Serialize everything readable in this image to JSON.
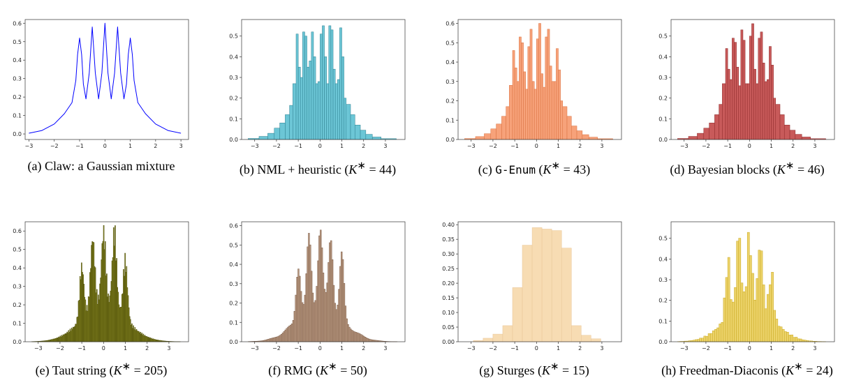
{
  "chart_data": [
    {
      "id": "a",
      "type": "line",
      "title": "",
      "color": "#0000ff",
      "caption": {
        "prefix": "(a) Claw: a Gaussian mixture",
        "kstar": ""
      },
      "xlim": [
        -3.15,
        3.3
      ],
      "ylim": [
        -0.03,
        0.62
      ],
      "xticks": [
        -3,
        -2,
        -1,
        0,
        1,
        2,
        3
      ],
      "xtick_labels": [
        "−3",
        "−2",
        "−1",
        "0",
        "1",
        "2",
        "3"
      ],
      "yticks": [
        0.0,
        0.1,
        0.2,
        0.3,
        0.4,
        0.5,
        0.6
      ],
      "ytick_labels": [
        "0.0",
        "0.1",
        "0.2",
        "0.3",
        "0.4",
        "0.5",
        "0.6"
      ],
      "x": [
        -3.0,
        -2.5,
        -2.0,
        -1.6,
        -1.3,
        -1.15,
        -1.08,
        -1.0,
        -0.92,
        -0.85,
        -0.75,
        -0.62,
        -0.5,
        -0.38,
        -0.25,
        -0.12,
        0.0,
        0.12,
        0.25,
        0.38,
        0.5,
        0.62,
        0.75,
        0.85,
        0.92,
        1.0,
        1.08,
        1.15,
        1.3,
        1.6,
        2.0,
        2.5,
        3.0
      ],
      "y": [
        0.004,
        0.018,
        0.054,
        0.11,
        0.17,
        0.29,
        0.43,
        0.52,
        0.43,
        0.27,
        0.19,
        0.33,
        0.58,
        0.33,
        0.19,
        0.33,
        0.6,
        0.33,
        0.19,
        0.33,
        0.58,
        0.33,
        0.19,
        0.27,
        0.43,
        0.52,
        0.43,
        0.29,
        0.17,
        0.11,
        0.054,
        0.018,
        0.004
      ]
    },
    {
      "id": "b",
      "type": "bar",
      "title": "",
      "color": "#6cc6d6",
      "edge": "#2c7f8f",
      "caption": {
        "prefix": "(b) NML + heuristic (",
        "kstar": "44"
      },
      "xlim": [
        -3.6,
        3.9
      ],
      "ylim": [
        0,
        0.58
      ],
      "xticks": [
        -3,
        -2,
        -1,
        0,
        1,
        2,
        3
      ],
      "xtick_labels": [
        "−3",
        "−2",
        "−1",
        "0",
        "1",
        "2",
        "3"
      ],
      "yticks": [
        0.0,
        0.1,
        0.2,
        0.3,
        0.4,
        0.5
      ],
      "ytick_labels": [
        "0.0",
        "0.1",
        "0.2",
        "0.3",
        "0.4",
        "0.5"
      ],
      "edges": [
        -3.3,
        -2.8,
        -2.4,
        -2.1,
        -1.85,
        -1.6,
        -1.4,
        -1.25,
        -1.1,
        -1.0,
        -0.9,
        -0.8,
        -0.7,
        -0.6,
        -0.5,
        -0.4,
        -0.3,
        -0.2,
        -0.1,
        0.0,
        0.1,
        0.2,
        0.3,
        0.4,
        0.5,
        0.6,
        0.7,
        0.8,
        0.9,
        1.0,
        1.1,
        1.2,
        1.4,
        1.6,
        1.85,
        2.1,
        2.4,
        2.8,
        3.5
      ],
      "values": [
        0.005,
        0.015,
        0.03,
        0.055,
        0.08,
        0.12,
        0.165,
        0.27,
        0.51,
        0.35,
        0.3,
        0.52,
        0.5,
        0.35,
        0.38,
        0.52,
        0.4,
        0.27,
        0.28,
        0.51,
        0.55,
        0.4,
        0.27,
        0.55,
        0.53,
        0.34,
        0.27,
        0.29,
        0.54,
        0.4,
        0.2,
        0.17,
        0.12,
        0.07,
        0.045,
        0.025,
        0.012,
        0.004
      ]
    },
    {
      "id": "c",
      "type": "bar",
      "title": "",
      "color": "#f7a27a",
      "edge": "#d9713f",
      "caption": {
        "prefix": "(c) ",
        "mono": "G-Enum",
        "mid": " (",
        "kstar": "43"
      },
      "xlim": [
        -3.6,
        3.9
      ],
      "ylim": [
        0,
        0.62
      ],
      "xticks": [
        -3,
        -2,
        -1,
        0,
        1,
        2,
        3
      ],
      "xtick_labels": [
        "−3",
        "−2",
        "−1",
        "0",
        "1",
        "2",
        "3"
      ],
      "yticks": [
        0.0,
        0.1,
        0.2,
        0.3,
        0.4,
        0.5,
        0.6
      ],
      "ytick_labels": [
        "0.0",
        "0.1",
        "0.2",
        "0.3",
        "0.4",
        "0.5",
        "0.6"
      ],
      "edges": [
        -3.3,
        -2.8,
        -2.4,
        -2.1,
        -1.85,
        -1.6,
        -1.4,
        -1.25,
        -1.1,
        -1.0,
        -0.9,
        -0.8,
        -0.7,
        -0.6,
        -0.5,
        -0.4,
        -0.3,
        -0.2,
        -0.1,
        0.0,
        0.1,
        0.2,
        0.3,
        0.4,
        0.5,
        0.6,
        0.7,
        0.8,
        0.9,
        1.0,
        1.1,
        1.2,
        1.4,
        1.6,
        1.85,
        2.1,
        2.4,
        2.8,
        3.5
      ],
      "values": [
        0.005,
        0.015,
        0.03,
        0.055,
        0.08,
        0.12,
        0.17,
        0.28,
        0.46,
        0.37,
        0.3,
        0.53,
        0.5,
        0.35,
        0.26,
        0.48,
        0.57,
        0.3,
        0.26,
        0.52,
        0.6,
        0.34,
        0.27,
        0.53,
        0.57,
        0.38,
        0.3,
        0.3,
        0.47,
        0.36,
        0.2,
        0.17,
        0.12,
        0.07,
        0.045,
        0.025,
        0.012,
        0.004
      ]
    },
    {
      "id": "d",
      "type": "bar",
      "title": "",
      "color": "#c85a5a",
      "edge": "#8e2a2a",
      "caption": {
        "prefix": "(d) Bayesian blocks (",
        "kstar": "46"
      },
      "xlim": [
        -3.6,
        3.9
      ],
      "ylim": [
        0,
        0.58
      ],
      "xticks": [
        -3,
        -2,
        -1,
        0,
        1,
        2,
        3
      ],
      "xtick_labels": [
        "−3",
        "−2",
        "−1",
        "0",
        "1",
        "2",
        "3"
      ],
      "yticks": [
        0.0,
        0.1,
        0.2,
        0.3,
        0.4,
        0.5
      ],
      "ytick_labels": [
        "0.0",
        "0.1",
        "0.2",
        "0.3",
        "0.4",
        "0.5"
      ],
      "edges": [
        -3.3,
        -2.8,
        -2.4,
        -2.1,
        -1.85,
        -1.6,
        -1.4,
        -1.25,
        -1.1,
        -1.0,
        -0.9,
        -0.8,
        -0.7,
        -0.6,
        -0.5,
        -0.4,
        -0.3,
        -0.2,
        -0.1,
        0.0,
        0.1,
        0.2,
        0.3,
        0.4,
        0.5,
        0.6,
        0.7,
        0.8,
        0.9,
        1.0,
        1.1,
        1.2,
        1.4,
        1.6,
        1.85,
        2.1,
        2.4,
        2.8,
        3.5
      ],
      "values": [
        0.005,
        0.015,
        0.03,
        0.055,
        0.08,
        0.12,
        0.17,
        0.27,
        0.44,
        0.34,
        0.29,
        0.49,
        0.47,
        0.35,
        0.26,
        0.53,
        0.48,
        0.27,
        0.27,
        0.5,
        0.56,
        0.34,
        0.27,
        0.49,
        0.52,
        0.37,
        0.28,
        0.29,
        0.45,
        0.36,
        0.2,
        0.17,
        0.12,
        0.07,
        0.045,
        0.025,
        0.012,
        0.004
      ]
    },
    {
      "id": "e",
      "type": "bar",
      "title": "",
      "color": "#8a8a25",
      "edge": "#4a4a05",
      "caption": {
        "prefix": "(e) Taut string (",
        "kstar": "205"
      },
      "xlim": [
        -3.6,
        3.9
      ],
      "ylim": [
        0,
        0.65
      ],
      "xticks": [
        -3,
        -2,
        -1,
        0,
        1,
        2,
        3
      ],
      "xtick_labels": [
        "−3",
        "−2",
        "−1",
        "0",
        "1",
        "2",
        "3"
      ],
      "yticks": [
        0.0,
        0.1,
        0.2,
        0.3,
        0.4,
        0.5,
        0.6
      ],
      "ytick_labels": [
        "0.0",
        "0.1",
        "0.2",
        "0.3",
        "0.4",
        "0.5",
        "0.6"
      ],
      "peaks": [
        -1.0,
        -0.5,
        0.0,
        0.5,
        1.0
      ],
      "peak_heights": [
        0.47,
        0.57,
        0.58,
        0.6,
        0.5
      ],
      "bin_width": 0.035,
      "bin_range": [
        -3.3,
        3.5
      ]
    },
    {
      "id": "f",
      "type": "bar",
      "title": "",
      "color": "#b89880",
      "edge": "#7a5a45",
      "caption": {
        "prefix": "(f) RMG (",
        "kstar": "50"
      },
      "xlim": [
        -3.6,
        3.9
      ],
      "ylim": [
        0,
        0.62
      ],
      "xticks": [
        -3,
        -2,
        -1,
        0,
        1,
        2,
        3
      ],
      "xtick_labels": [
        "−3",
        "−2",
        "−1",
        "0",
        "1",
        "2",
        "3"
      ],
      "yticks": [
        0.0,
        0.1,
        0.2,
        0.3,
        0.4,
        0.5,
        0.6
      ],
      "ytick_labels": [
        "0.0",
        "0.1",
        "0.2",
        "0.3",
        "0.4",
        "0.5",
        "0.6"
      ],
      "peaks": [
        -1.0,
        -0.5,
        0.0,
        0.5,
        1.0
      ],
      "peak_heights": [
        0.49,
        0.54,
        0.57,
        0.58,
        0.49
      ],
      "bin_width": 0.06,
      "bin_range": [
        -3.3,
        3.5
      ]
    },
    {
      "id": "g",
      "type": "bar",
      "title": "",
      "color": "#f7dcb3",
      "edge": "#e8c596",
      "caption": {
        "prefix": "(g) Sturges (",
        "kstar": "15"
      },
      "xlim": [
        -3.6,
        3.9
      ],
      "ylim": [
        0,
        0.41
      ],
      "xticks": [
        -3,
        -2,
        -1,
        0,
        1,
        2,
        3
      ],
      "xtick_labels": [
        "−3",
        "−2",
        "−1",
        "0",
        "1",
        "2",
        "3"
      ],
      "yticks": [
        0.0,
        0.05,
        0.1,
        0.15,
        0.2,
        0.25,
        0.3,
        0.35,
        0.4
      ],
      "ytick_labels": [
        "0.00",
        "0.05",
        "0.10",
        "0.15",
        "0.20",
        "0.25",
        "0.30",
        "0.35",
        "0.40"
      ],
      "edges": [
        -2.9,
        -2.45,
        -2.0,
        -1.55,
        -1.1,
        -0.65,
        -0.2,
        0.25,
        0.7,
        1.15,
        1.6,
        2.05,
        2.5,
        2.95
      ],
      "values": [
        0.004,
        0.012,
        0.026,
        0.055,
        0.185,
        0.33,
        0.39,
        0.385,
        0.38,
        0.32,
        0.055,
        0.022,
        0.01
      ]
    },
    {
      "id": "h",
      "type": "bar",
      "title": "",
      "color": "#ecd36a",
      "edge": "#c9a820",
      "caption": {
        "prefix": "(h) Freedman-Diaconis (",
        "kstar": "24"
      },
      "xlim": [
        -3.6,
        3.9
      ],
      "ylim": [
        0,
        0.58
      ],
      "xticks": [
        -3,
        -2,
        -1,
        0,
        1,
        2,
        3
      ],
      "xtick_labels": [
        "−3",
        "−2",
        "−1",
        "0",
        "1",
        "2",
        "3"
      ],
      "yticks": [
        0.0,
        0.1,
        0.2,
        0.3,
        0.4,
        0.5
      ],
      "ytick_labels": [
        "0.0",
        "0.1",
        "0.2",
        "0.3",
        "0.4",
        "0.5"
      ],
      "peaks": [
        -1.0,
        -0.5,
        0.0,
        0.5,
        1.0
      ],
      "peak_heights": [
        0.46,
        0.54,
        0.5,
        0.5,
        0.4
      ],
      "bin_width": 0.1,
      "bin_range": [
        -3.3,
        3.5
      ]
    }
  ]
}
